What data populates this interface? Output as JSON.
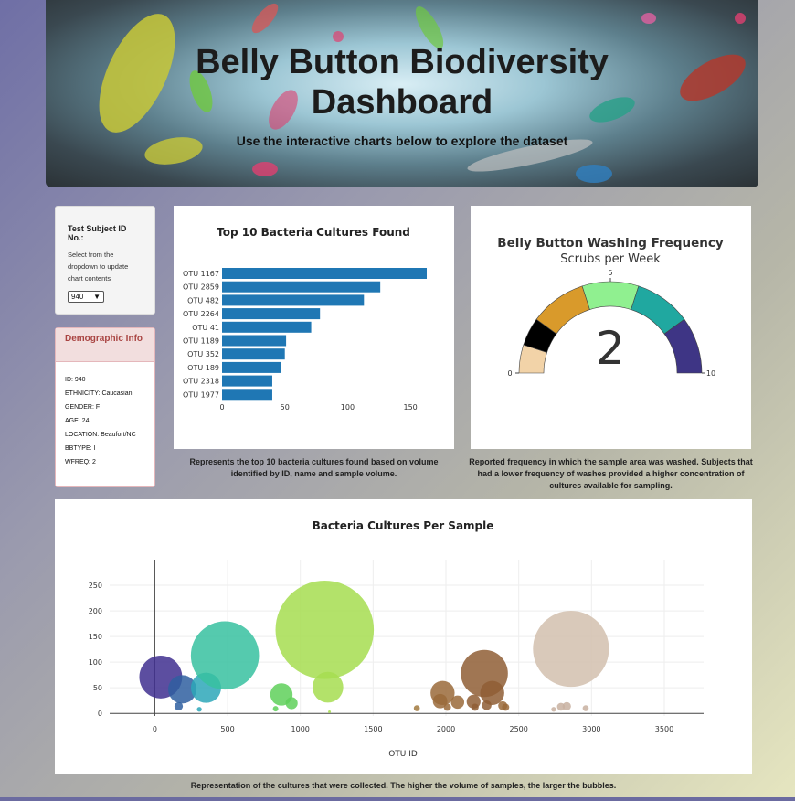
{
  "header": {
    "title_line1": "Belly Button Biodiversity",
    "title_line2": "Dashboard",
    "subtitle": "Use the interactive charts below to explore the dataset"
  },
  "selector": {
    "title": "Test Subject ID No.:",
    "description": "Select from the dropdown to update chart contents",
    "selected": "940"
  },
  "demographic": {
    "title": "Demographic Info",
    "fields": [
      "ID: 940",
      "ETHNICITY: Caucasian",
      "GENDER: F",
      "AGE: 24",
      "LOCATION: Beaufort/NC",
      "BBTYPE: I",
      "WFREQ: 2"
    ]
  },
  "captions": {
    "bar": "Represents the top 10 bacteria cultures found based on volume identified by ID, name and sample volume.",
    "gauge": "Reported frequency in which the sample area was washed. Subjects that had a lower frequency of washes provided a higher concentration of cultures available for sampling.",
    "bubble": "Representation of the cultures that were collected. The higher the volume of samples, the larger the bubbles."
  },
  "colors": {
    "bar": "#1f77b4",
    "alert_bg": "#f2dede",
    "alert_text": "#a94442"
  },
  "chart_data": [
    {
      "type": "bar",
      "orientation": "horizontal",
      "title": "Top 10 Bacteria Cultures Found",
      "categories": [
        "OTU 1167",
        "OTU 2859",
        "OTU 482",
        "OTU 2264",
        "OTU 41",
        "OTU 1189",
        "OTU 352",
        "OTU 189",
        "OTU 2318",
        "OTU 1977"
      ],
      "values": [
        163,
        126,
        113,
        78,
        71,
        51,
        50,
        47,
        40,
        40
      ],
      "xticks": [
        0,
        50,
        100,
        150
      ],
      "xlim": [
        0,
        171
      ]
    },
    {
      "type": "gauge",
      "title": "Belly Button Washing Frequency",
      "subtitle": "Scrubs per Week",
      "value": 2,
      "range": [
        0,
        10
      ],
      "ticks": [
        0,
        5,
        10
      ],
      "bands": [
        {
          "from": 0,
          "to": 1,
          "color": "#f2d3a8"
        },
        {
          "from": 1,
          "to": 2,
          "color": "#000000"
        },
        {
          "from": 2,
          "to": 4,
          "color": "#d99a2b"
        },
        {
          "from": 4,
          "to": 6,
          "color": "#90f090"
        },
        {
          "from": 6,
          "to": 8,
          "color": "#20a8a0"
        },
        {
          "from": 8,
          "to": 10,
          "color": "#3e3585"
        }
      ]
    },
    {
      "type": "scatter",
      "title": "Bacteria Cultures Per Sample",
      "xlabel": "OTU ID",
      "xticks": [
        0,
        500,
        1000,
        1500,
        2000,
        2500,
        3000,
        3500
      ],
      "yticks": [
        0,
        50,
        100,
        150,
        200,
        250
      ],
      "xlim": [
        -310,
        3770
      ],
      "ylim": [
        -5,
        300
      ],
      "points": [
        {
          "x": 41,
          "y": 71,
          "color": "#3f2f8f"
        },
        {
          "x": 189,
          "y": 47,
          "color": "#2f5fa0"
        },
        {
          "x": 352,
          "y": 50,
          "color": "#2da7b9"
        },
        {
          "x": 482,
          "y": 113,
          "color": "#37c1a0"
        },
        {
          "x": 164,
          "y": 14,
          "color": "#2f5fa0"
        },
        {
          "x": 306,
          "y": 8,
          "color": "#2da7b9"
        },
        {
          "x": 870,
          "y": 37,
          "color": "#5fd05a"
        },
        {
          "x": 940,
          "y": 20,
          "color": "#5fd05a"
        },
        {
          "x": 830,
          "y": 9,
          "color": "#5fd05a"
        },
        {
          "x": 1167,
          "y": 163,
          "color": "#a6dd50"
        },
        {
          "x": 1189,
          "y": 51,
          "color": "#a6dd50"
        },
        {
          "x": 1200,
          "y": 3,
          "color": "#a6dd50"
        },
        {
          "x": 1800,
          "y": 10,
          "color": "#a27a40"
        },
        {
          "x": 1977,
          "y": 40,
          "color": "#9a6a3a"
        },
        {
          "x": 1960,
          "y": 24,
          "color": "#9a6a3a"
        },
        {
          "x": 2010,
          "y": 12,
          "color": "#9a6a3a"
        },
        {
          "x": 2080,
          "y": 22,
          "color": "#9a6a3a"
        },
        {
          "x": 2190,
          "y": 23,
          "color": "#8f5e35"
        },
        {
          "x": 2200,
          "y": 12,
          "color": "#8f5e35"
        },
        {
          "x": 2264,
          "y": 78,
          "color": "#8f5e35"
        },
        {
          "x": 2318,
          "y": 40,
          "color": "#8f5e35"
        },
        {
          "x": 2280,
          "y": 16,
          "color": "#8f5e35"
        },
        {
          "x": 2390,
          "y": 15,
          "color": "#9a6a3a"
        },
        {
          "x": 2410,
          "y": 12,
          "color": "#9a6a3a"
        },
        {
          "x": 2740,
          "y": 8,
          "color": "#c8b0a0"
        },
        {
          "x": 2790,
          "y": 13,
          "color": "#c8b0a0"
        },
        {
          "x": 2830,
          "y": 14,
          "color": "#c8b0a0"
        },
        {
          "x": 2859,
          "y": 126,
          "color": "#d2bfae"
        },
        {
          "x": 2960,
          "y": 10,
          "color": "#c8b0a0"
        }
      ]
    }
  ]
}
